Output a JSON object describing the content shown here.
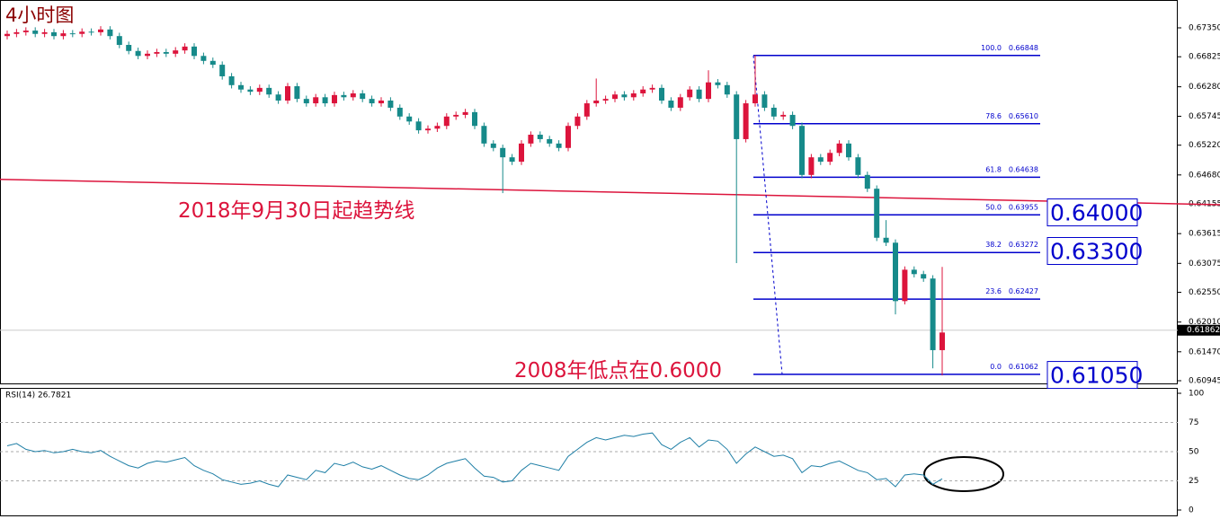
{
  "chart_data": {
    "type": "candlestick",
    "title": "4小时图",
    "ylim": [
      0.6088,
      0.67855
    ],
    "yticks": [
      {
        "value": 0.6735,
        "label": "0.67350"
      },
      {
        "value": 0.66825,
        "label": "0.66825"
      },
      {
        "value": 0.6628,
        "label": "0.66280"
      },
      {
        "value": 0.65745,
        "label": "0.65745"
      },
      {
        "value": 0.6522,
        "label": "0.65220"
      },
      {
        "value": 0.6468,
        "label": "0.64680"
      },
      {
        "value": 0.64155,
        "label": "0.64155"
      },
      {
        "value": 0.63615,
        "label": "0.63615"
      },
      {
        "value": 0.63075,
        "label": "0.63075"
      },
      {
        "value": 0.6255,
        "label": "0.62550"
      },
      {
        "value": 0.6201,
        "label": "0.62010"
      },
      {
        "value": 0.6147,
        "label": "0.61470"
      },
      {
        "value": 0.60945,
        "label": "0.60945"
      }
    ],
    "grid": false,
    "up_color": "#dc143c",
    "down_color": "#168a8a",
    "candles": {
      "open": [
        0.672,
        0.6724,
        0.6727,
        0.673,
        0.6724,
        0.6727,
        0.672,
        0.6725,
        0.6724,
        0.6728,
        0.6727,
        0.6732,
        0.672,
        0.6704,
        0.6693,
        0.6684,
        0.6688,
        0.6691,
        0.6688,
        0.6694,
        0.6701,
        0.6684,
        0.6675,
        0.6668,
        0.6647,
        0.6631,
        0.6623,
        0.6619,
        0.6626,
        0.6614,
        0.6603,
        0.6629,
        0.6606,
        0.6598,
        0.6609,
        0.6598,
        0.6613,
        0.6609,
        0.6616,
        0.6606,
        0.6598,
        0.6603,
        0.659,
        0.6574,
        0.6565,
        0.6549,
        0.6552,
        0.6557,
        0.6574,
        0.6577,
        0.6582,
        0.6557,
        0.6525,
        0.6517,
        0.65,
        0.6492,
        0.6525,
        0.6541,
        0.6533,
        0.6525,
        0.6517,
        0.6557,
        0.6574,
        0.6598,
        0.6603,
        0.6606,
        0.6614,
        0.6609,
        0.6616,
        0.6623,
        0.6626,
        0.6603,
        0.659,
        0.6609,
        0.6623,
        0.6606,
        0.6636,
        0.6631,
        0.6614,
        0.6533,
        0.6598,
        0.6614,
        0.659,
        0.6574,
        0.6577,
        0.6557,
        0.6468,
        0.65,
        0.6492,
        0.6508,
        0.6525,
        0.65,
        0.6468,
        0.6443,
        0.6354,
        0.6345,
        0.6239,
        0.6296,
        0.6288,
        0.628,
        0.615
      ],
      "high": [
        0.673,
        0.6733,
        0.6736,
        0.6736,
        0.6733,
        0.6733,
        0.6731,
        0.6731,
        0.6734,
        0.6734,
        0.6738,
        0.6738,
        0.6726,
        0.671,
        0.6699,
        0.6694,
        0.6697,
        0.6697,
        0.67,
        0.6707,
        0.6707,
        0.669,
        0.6681,
        0.6674,
        0.6653,
        0.6637,
        0.6629,
        0.6632,
        0.6632,
        0.662,
        0.6635,
        0.6635,
        0.6612,
        0.6615,
        0.6615,
        0.6619,
        0.6619,
        0.6622,
        0.6622,
        0.6612,
        0.6609,
        0.6609,
        0.6596,
        0.658,
        0.6571,
        0.6558,
        0.6563,
        0.658,
        0.6583,
        0.6588,
        0.6588,
        0.6563,
        0.6531,
        0.6523,
        0.6506,
        0.6531,
        0.6547,
        0.6547,
        0.6539,
        0.6531,
        0.6563,
        0.658,
        0.6604,
        0.6643,
        0.6612,
        0.662,
        0.662,
        0.6622,
        0.6629,
        0.6632,
        0.6632,
        0.6609,
        0.6615,
        0.6629,
        0.6629,
        0.6658,
        0.6642,
        0.6637,
        0.662,
        0.6604,
        0.6685,
        0.662,
        0.6596,
        0.6583,
        0.6583,
        0.6563,
        0.6506,
        0.6506,
        0.6514,
        0.6531,
        0.6531,
        0.6506,
        0.6474,
        0.6449,
        0.6386,
        0.6351,
        0.6302,
        0.6302,
        0.6294,
        0.6286,
        0.6301
      ],
      "low": [
        0.6714,
        0.6718,
        0.6721,
        0.6718,
        0.6718,
        0.6714,
        0.6714,
        0.6718,
        0.6718,
        0.6721,
        0.6721,
        0.6714,
        0.6698,
        0.6687,
        0.6678,
        0.6678,
        0.6682,
        0.6682,
        0.6682,
        0.6688,
        0.6678,
        0.6669,
        0.6662,
        0.6641,
        0.6625,
        0.6617,
        0.6613,
        0.6613,
        0.6608,
        0.6597,
        0.6597,
        0.66,
        0.6592,
        0.6592,
        0.6592,
        0.6592,
        0.6603,
        0.6603,
        0.66,
        0.6592,
        0.6592,
        0.6584,
        0.6568,
        0.6559,
        0.6543,
        0.6543,
        0.6546,
        0.6551,
        0.6568,
        0.6571,
        0.6551,
        0.6519,
        0.6511,
        0.6435,
        0.6486,
        0.6486,
        0.6519,
        0.6527,
        0.6519,
        0.6511,
        0.6511,
        0.6551,
        0.6568,
        0.6592,
        0.6597,
        0.66,
        0.6603,
        0.6603,
        0.661,
        0.6617,
        0.6597,
        0.6584,
        0.6584,
        0.6603,
        0.66,
        0.66,
        0.6625,
        0.6608,
        0.6308,
        0.6527,
        0.6592,
        0.6584,
        0.6568,
        0.6568,
        0.6551,
        0.6462,
        0.6462,
        0.6486,
        0.6486,
        0.6502,
        0.6494,
        0.6462,
        0.6437,
        0.6348,
        0.6339,
        0.6215,
        0.6233,
        0.6282,
        0.6274,
        0.6117,
        0.6104
      ],
      "close": [
        0.6724,
        0.6727,
        0.673,
        0.6724,
        0.6727,
        0.672,
        0.6725,
        0.6724,
        0.6728,
        0.6727,
        0.6732,
        0.672,
        0.6704,
        0.6693,
        0.6684,
        0.6688,
        0.6691,
        0.6688,
        0.6694,
        0.6701,
        0.6684,
        0.6675,
        0.6668,
        0.6647,
        0.6631,
        0.6623,
        0.6619,
        0.6626,
        0.6614,
        0.6603,
        0.6629,
        0.6606,
        0.6598,
        0.6609,
        0.6598,
        0.6613,
        0.6609,
        0.6616,
        0.6606,
        0.6598,
        0.6603,
        0.659,
        0.6574,
        0.6565,
        0.6549,
        0.6552,
        0.6557,
        0.6574,
        0.6577,
        0.6582,
        0.6557,
        0.6525,
        0.6517,
        0.65,
        0.6492,
        0.6525,
        0.6541,
        0.6533,
        0.6525,
        0.6517,
        0.6557,
        0.6574,
        0.6598,
        0.6603,
        0.6606,
        0.6614,
        0.6609,
        0.6616,
        0.6623,
        0.6626,
        0.6603,
        0.659,
        0.6609,
        0.6623,
        0.6606,
        0.6636,
        0.6631,
        0.6614,
        0.6533,
        0.6598,
        0.6614,
        0.659,
        0.6574,
        0.6577,
        0.6557,
        0.6468,
        0.65,
        0.6492,
        0.6508,
        0.6525,
        0.65,
        0.6468,
        0.6443,
        0.6354,
        0.6345,
        0.6239,
        0.6296,
        0.6288,
        0.628,
        0.615,
        0.6182
      ]
    },
    "fib": {
      "color": "#0000cd",
      "levels": [
        {
          "level": "100.0",
          "value": 0.66848,
          "label": "0.66848"
        },
        {
          "level": "78.6",
          "value": 0.6561,
          "label": "0.65610"
        },
        {
          "level": "61.8",
          "value": 0.64638,
          "label": "0.64638"
        },
        {
          "level": "50.0",
          "value": 0.63955,
          "label": "0.63955"
        },
        {
          "level": "38.2",
          "value": 0.63272,
          "label": "0.63272"
        },
        {
          "level": "23.6",
          "value": 0.62427,
          "label": "0.62427"
        },
        {
          "level": "0.0",
          "value": 0.61062,
          "label": "0.61062"
        }
      ]
    },
    "trendline": {
      "color": "#dc143c",
      "values": [
        0.646,
        0.6414
      ]
    },
    "annotations": [
      "2018年9月30日起趋势线",
      "2008年低点在0.6000"
    ],
    "price_boxes": [
      {
        "value": 0.64,
        "label": "0.64000"
      },
      {
        "value": 0.633,
        "label": "0.63300"
      },
      {
        "value": 0.6105,
        "label": "0.61050"
      }
    ],
    "last_price": {
      "value": 0.61862,
      "label": "0.61862"
    },
    "rsi": {
      "label": "RSI(14) 26.7821",
      "color": "#1f7fa6",
      "ylim": [
        0,
        100
      ],
      "yticks": [
        0,
        25,
        50,
        75,
        100
      ],
      "grid": true,
      "values": [
        55,
        57,
        52,
        50,
        51,
        49,
        50,
        52,
        50,
        49,
        51,
        46,
        42,
        38,
        36,
        40,
        42,
        41,
        43,
        45,
        38,
        34,
        31,
        26,
        24,
        22,
        23,
        25,
        22,
        20,
        30,
        28,
        26,
        34,
        32,
        40,
        38,
        41,
        37,
        35,
        38,
        34,
        30,
        27,
        26,
        30,
        36,
        40,
        42,
        44,
        36,
        29,
        28,
        24,
        25,
        34,
        40,
        38,
        36,
        34,
        46,
        52,
        58,
        62,
        60,
        62,
        64,
        63,
        65,
        66,
        56,
        52,
        58,
        62,
        54,
        60,
        59,
        52,
        40,
        48,
        54,
        50,
        46,
        47,
        44,
        32,
        38,
        37,
        40,
        42,
        38,
        34,
        32,
        26,
        27,
        20,
        30,
        31,
        30,
        22,
        26.7821
      ]
    }
  }
}
